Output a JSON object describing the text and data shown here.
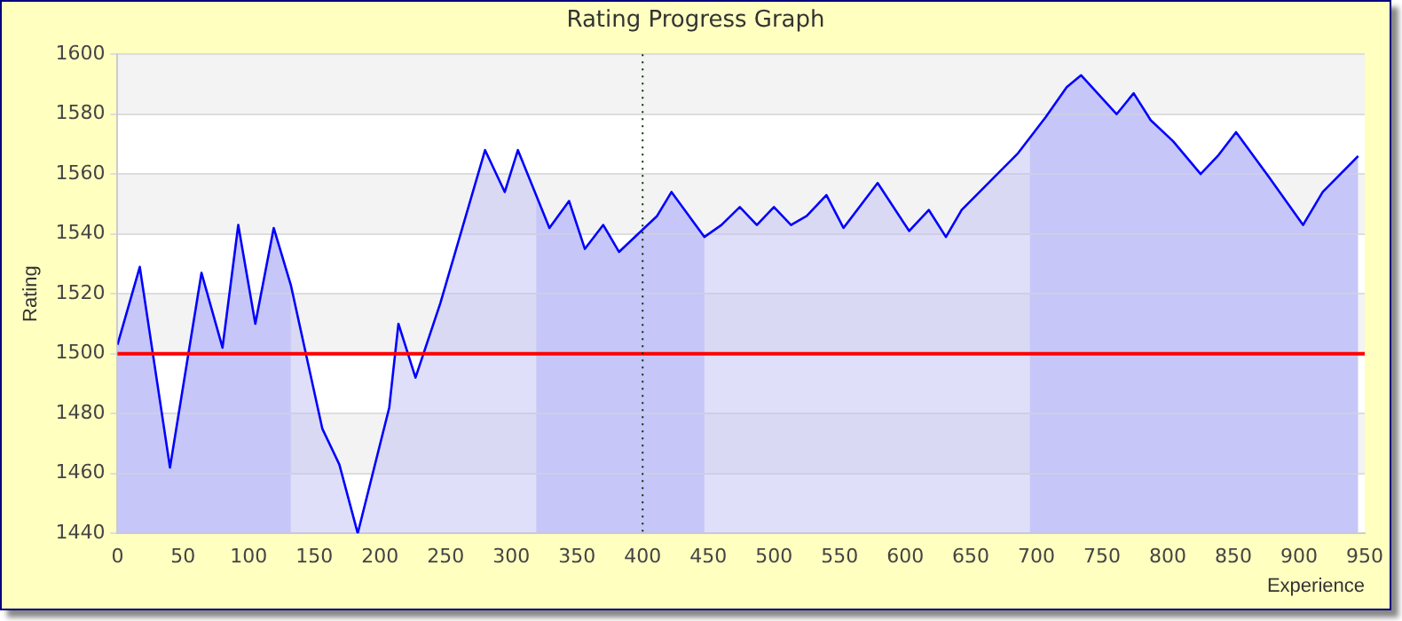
{
  "chart_data": {
    "type": "area",
    "title": "Rating Progress Graph",
    "xlabel": "Experience",
    "ylabel": "Rating",
    "x": [
      0,
      17,
      40,
      64,
      80,
      92,
      105,
      119,
      132,
      156,
      169,
      183,
      207,
      214,
      227,
      246,
      280,
      295,
      305,
      329,
      344,
      356,
      370,
      382,
      411,
      422,
      447,
      460,
      474,
      487,
      500,
      513,
      525,
      540,
      553,
      579,
      603,
      618,
      631,
      643,
      686,
      707,
      723,
      734,
      761,
      774,
      787,
      804,
      825,
      838,
      852,
      877,
      903,
      918,
      945
    ],
    "series": [
      {
        "color": "#0000ff",
        "values": [
          1503,
          1529,
          1462,
          1527,
          1502,
          1543,
          1510,
          1542,
          1523,
          1475,
          1463,
          1440,
          1482,
          1510,
          1492,
          1517,
          1568,
          1554,
          1568,
          1542,
          1551,
          1535,
          1543,
          1534,
          1546,
          1554,
          1539,
          1543,
          1549,
          1543,
          1549,
          1543,
          1546,
          1553,
          1542,
          1557,
          1541,
          1548,
          1539,
          1548,
          1567,
          1579,
          1589,
          1593,
          1580,
          1587,
          1578,
          1571,
          1560,
          1566,
          1574,
          1559,
          1543,
          1554,
          1566
        ]
      }
    ],
    "xlim": [
      0,
      950
    ],
    "xticks": [
      0,
      50,
      100,
      150,
      200,
      250,
      300,
      350,
      400,
      450,
      500,
      550,
      600,
      650,
      700,
      750,
      800,
      850,
      900,
      950
    ],
    "ylim": [
      1440,
      1600
    ],
    "yticks": [
      1440,
      1460,
      1480,
      1500,
      1520,
      1540,
      1560,
      1580,
      1600
    ],
    "grid": true,
    "legend": false,
    "marker": "none",
    "ref_lines": [
      {
        "axis": "y",
        "value": 1500,
        "color": "#ff0000",
        "line_style": "solid"
      },
      {
        "axis": "x",
        "value": 400,
        "color": "#003300",
        "line_style": "dotted"
      }
    ],
    "bands": [
      {
        "axis": "x",
        "from": 0,
        "to": 132,
        "color": "#ccccfa"
      },
      {
        "axis": "x",
        "from": 319,
        "to": 447,
        "color": "#ccccfa"
      },
      {
        "axis": "x",
        "from": 695,
        "to": 945,
        "color": "#ccccfa"
      }
    ]
  }
}
